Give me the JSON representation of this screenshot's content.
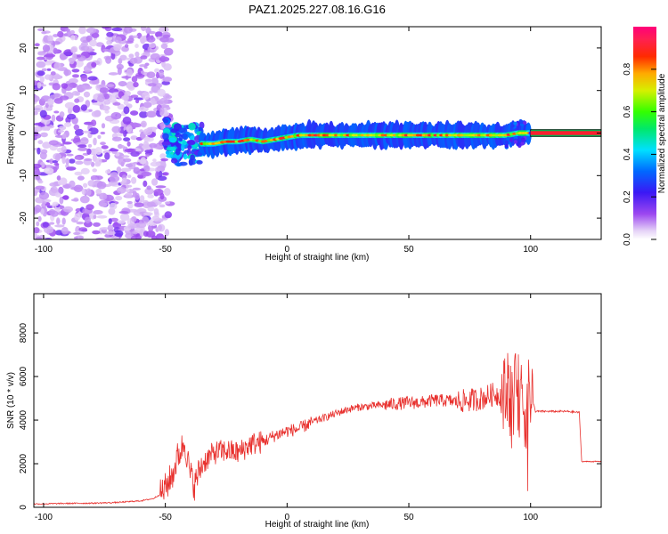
{
  "title": "PAZ1.2025.227.08.16.G16",
  "chart_data": [
    {
      "type": "heatmap",
      "xlabel": "Height of straight line (km)",
      "ylabel": "Frequency (Hz)",
      "xlim": [
        -104,
        129
      ],
      "ylim": [
        -25,
        25
      ],
      "xticks": [
        -100,
        -50,
        0,
        50,
        100
      ],
      "yticks": [
        -20,
        -10,
        0,
        10,
        20
      ],
      "colorbar": {
        "label": "Normalized spectral amplitude",
        "range": [
          0,
          1
        ],
        "ticks": [
          0.0,
          0.2,
          0.4,
          0.6,
          0.8
        ],
        "colormap": "rainbow (violet-blue-cyan-green-yellow-red-magenta)"
      },
      "regions": [
        {
          "x_range": [
            -104,
            -50
          ],
          "description": "scattered low amplitude noise",
          "freq_range": [
            -25,
            25
          ],
          "amplitude": 0.1
        },
        {
          "x_range": [
            -50,
            -35
          ],
          "description": "transition",
          "center_freq": -2,
          "amplitude": 0.4
        },
        {
          "x_range": [
            -35,
            100
          ],
          "description": "signal band",
          "center_freq": [
            -2,
            0
          ],
          "amplitude": 0.7
        },
        {
          "x_range": [
            100,
            129
          ],
          "description": "constant line",
          "center_freq": 0,
          "amplitude": 0.95
        }
      ],
      "ridge": {
        "x": [
          -48,
          -45,
          -40,
          -35,
          -30,
          -25,
          -20,
          -15,
          -10,
          -5,
          0,
          5,
          10,
          20,
          30,
          40,
          50,
          60,
          70,
          80,
          90,
          95,
          100,
          110,
          120,
          129
        ],
        "freq": [
          -1,
          -3,
          -2.5,
          -2.5,
          -2.5,
          -2,
          -2,
          -1.5,
          -2,
          -1.5,
          -1,
          -0.5,
          -0.5,
          -0.5,
          -0.5,
          -0.5,
          -0.5,
          -0.5,
          -0.5,
          -0.5,
          -0.5,
          0,
          0,
          0,
          0,
          0
        ]
      }
    },
    {
      "type": "line",
      "xlabel": "Height of straight line (km)",
      "ylabel": "SNR (10 * v/v)",
      "xlim": [
        -104,
        129
      ],
      "ylim": [
        0,
        9800
      ],
      "xticks": [
        -100,
        -50,
        0,
        50,
        100
      ],
      "yticks": [
        0,
        2000,
        4000,
        6000,
        8000
      ],
      "color": "#e8302d",
      "x": [
        -104,
        -90,
        -80,
        -70,
        -60,
        -55,
        -52,
        -50,
        -47,
        -45,
        -42,
        -40,
        -38,
        -36,
        -34,
        -30,
        -25,
        -20,
        -15,
        -10,
        -5,
        0,
        5,
        10,
        15,
        20,
        25,
        30,
        35,
        40,
        45,
        50,
        55,
        60,
        65,
        70,
        75,
        80,
        85,
        90,
        95,
        98,
        100,
        102,
        105,
        110,
        115,
        120,
        121,
        125,
        129
      ],
      "y": [
        150,
        180,
        190,
        220,
        300,
        400,
        600,
        900,
        1500,
        2300,
        3000,
        1600,
        1000,
        1700,
        2100,
        2500,
        2600,
        2500,
        2900,
        3000,
        3300,
        3500,
        3600,
        3900,
        4100,
        4300,
        4500,
        4600,
        4650,
        4700,
        4750,
        4800,
        4800,
        4900,
        4900,
        4850,
        4900,
        5000,
        5200,
        5100,
        5200,
        4400,
        5300,
        4400,
        4400,
        4400,
        4400,
        4350,
        2100,
        2100,
        2100
      ]
    }
  ]
}
